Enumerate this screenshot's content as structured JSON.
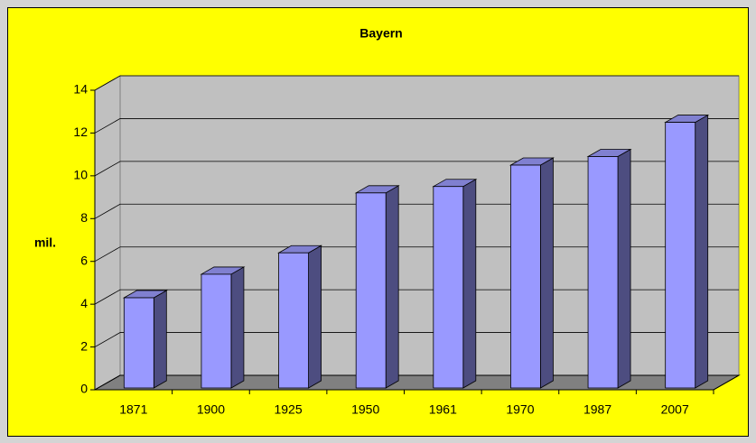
{
  "chart_data": {
    "type": "bar",
    "title": "Bayern",
    "y_label": "mil.",
    "categories": [
      "1871",
      "1900",
      "1925",
      "1950",
      "1961",
      "1970",
      "1987",
      "2007"
    ],
    "values": [
      4.3,
      5.4,
      6.4,
      9.2,
      9.5,
      10.5,
      10.9,
      12.5
    ],
    "color": "#9999ff",
    "ylim": [
      0,
      14
    ],
    "yticks": [
      0,
      2,
      4,
      6,
      8,
      10,
      12,
      14
    ],
    "grid": true
  }
}
